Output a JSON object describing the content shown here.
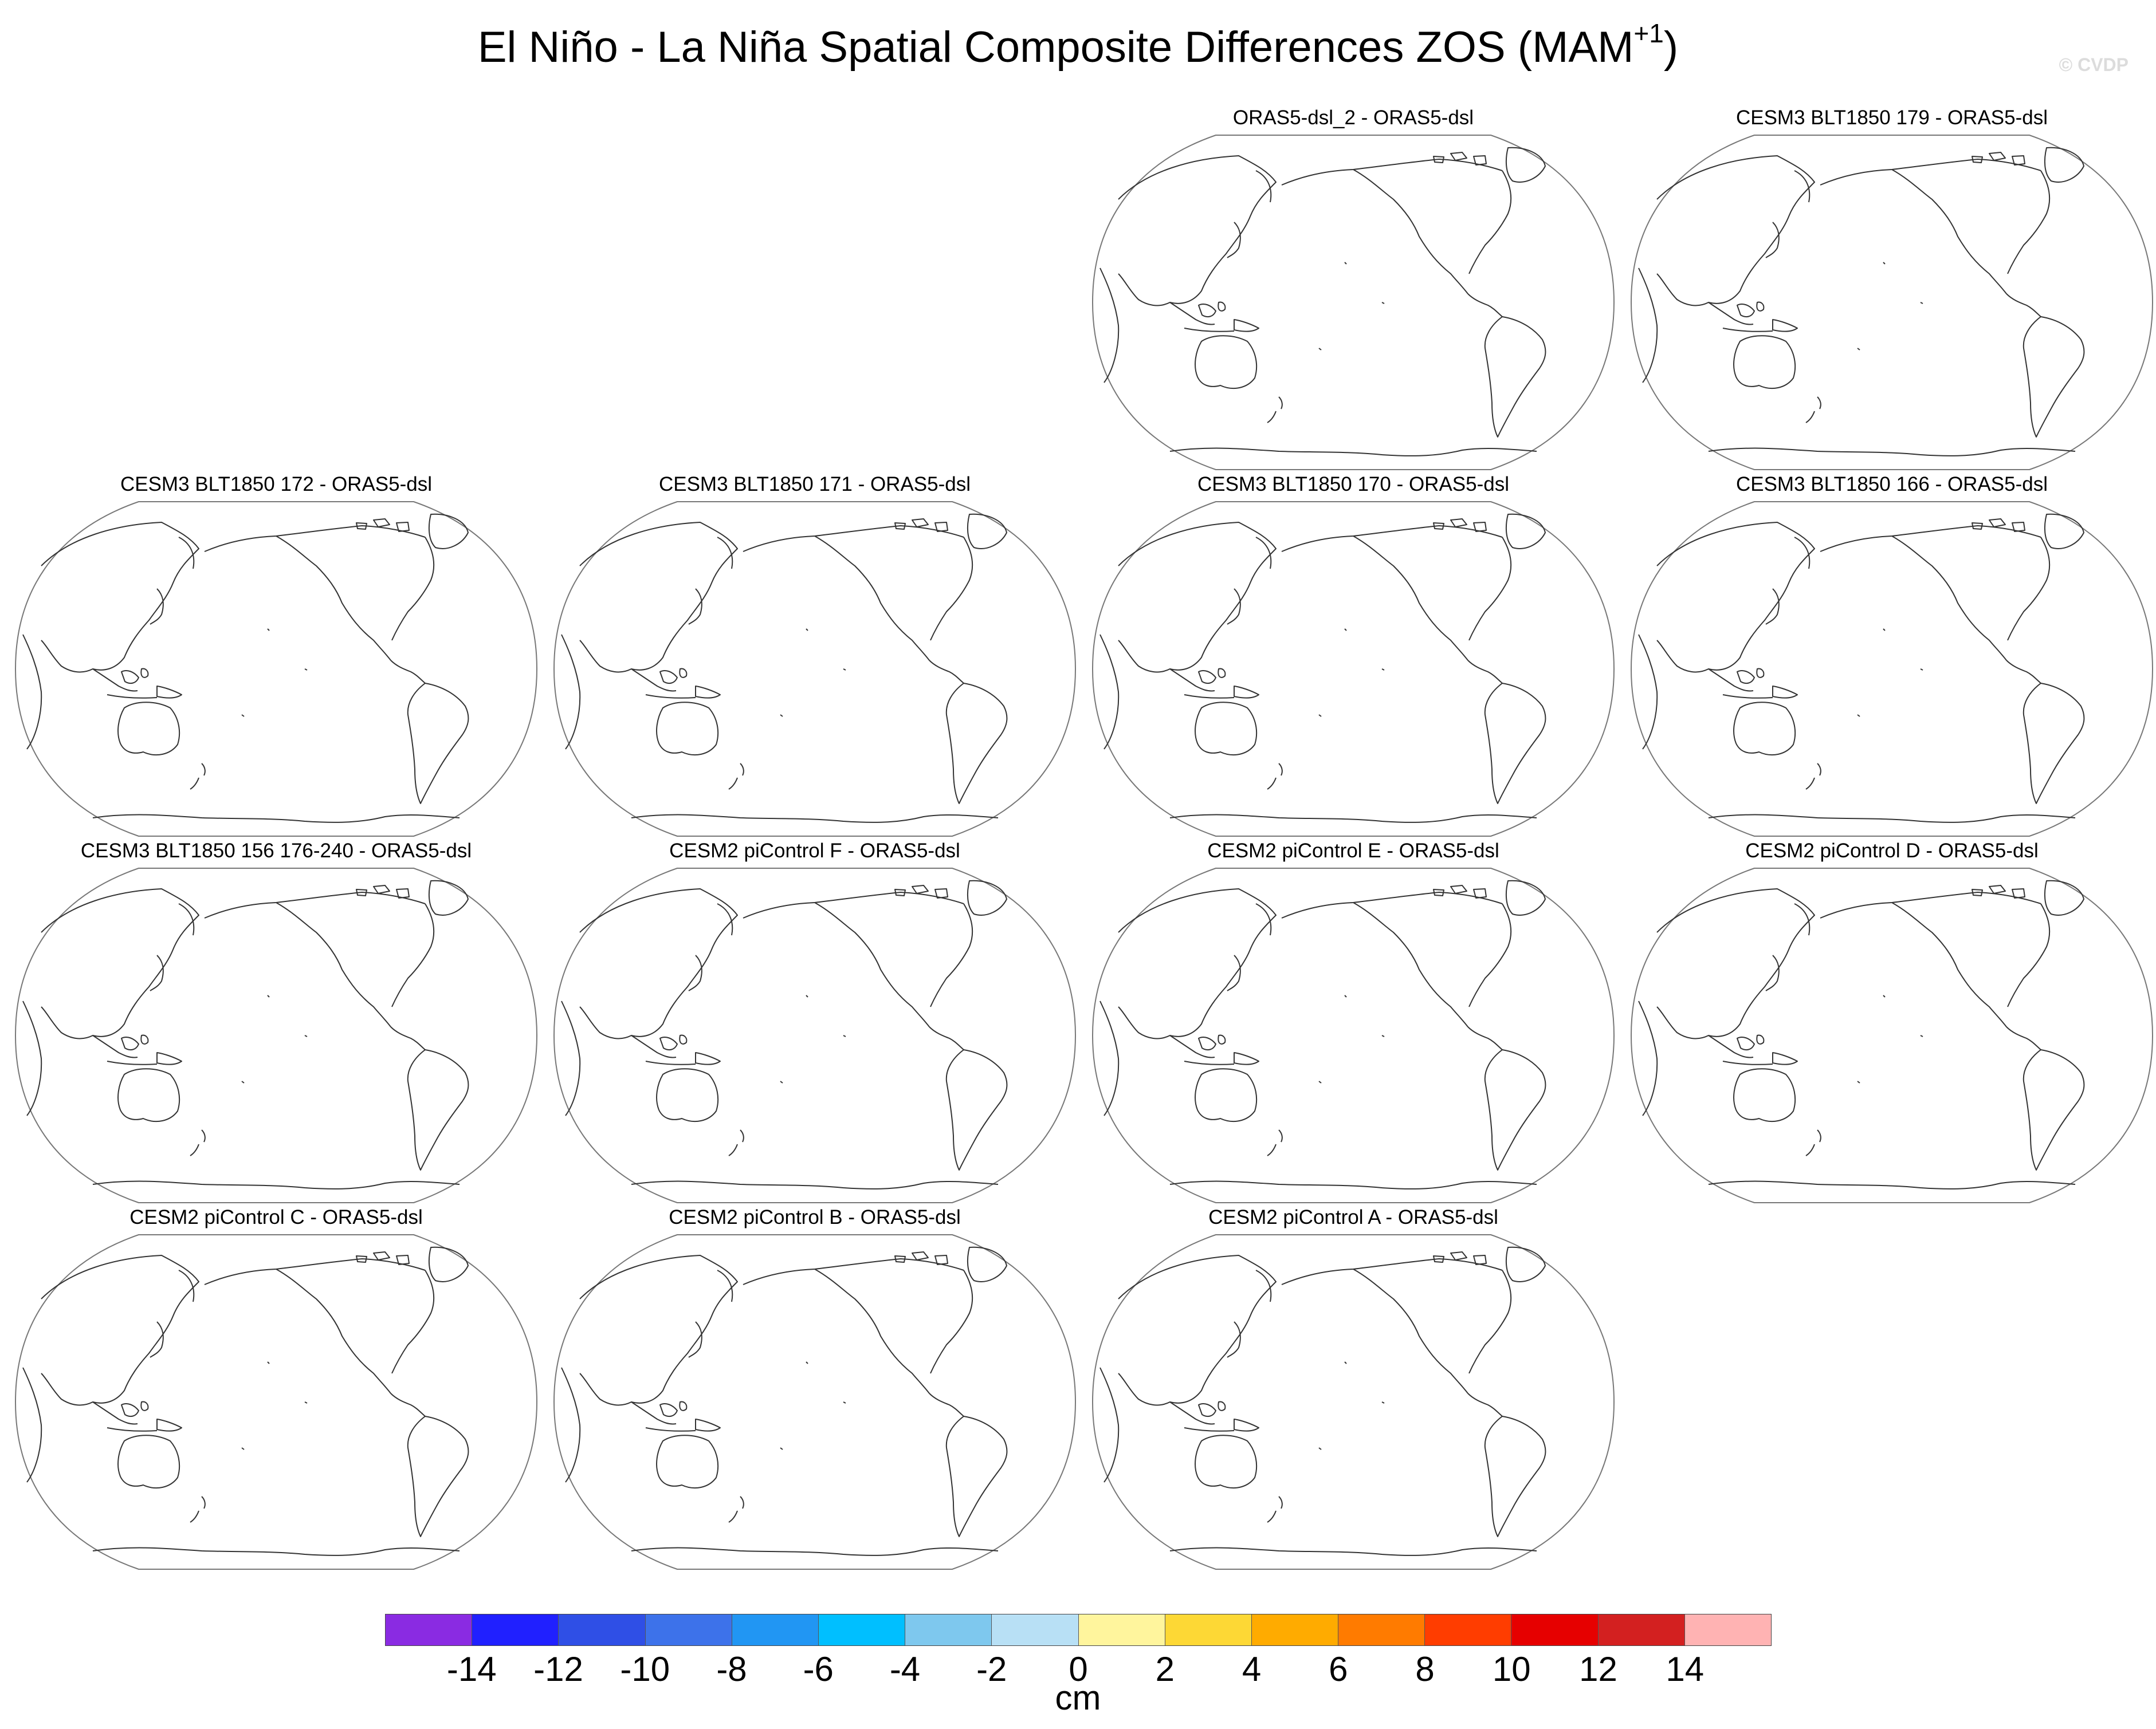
{
  "title": {
    "text": "El Niño - La Niña Spatial Composite Differences ZOS (MAM",
    "superscript": "+1",
    "suffix": ")"
  },
  "watermark": "© CVDP",
  "panels": [
    "ORAS5-dsl_2 - ORAS5-dsl",
    "CESM3 BLT1850 179 - ORAS5-dsl",
    "CESM3 BLT1850 172 - ORAS5-dsl",
    "CESM3 BLT1850 171 - ORAS5-dsl",
    "CESM3 BLT1850 170 - ORAS5-dsl",
    "CESM3 BLT1850 166 - ORAS5-dsl",
    "CESM3 BLT1850 156 176-240 - ORAS5-dsl",
    "CESM2 piControl F - ORAS5-dsl",
    "CESM2 piControl E - ORAS5-dsl",
    "CESM2 piControl D - ORAS5-dsl",
    "CESM2 piControl C - ORAS5-dsl",
    "CESM2 piControl B - ORAS5-dsl",
    "CESM2 piControl A - ORAS5-dsl"
  ],
  "colorbar": {
    "units": "cm",
    "labels": [
      "-14",
      "-12",
      "-10",
      "-8",
      "-6",
      "-4",
      "-2",
      "0",
      "2",
      "4",
      "6",
      "8",
      "10",
      "12",
      "14"
    ],
    "colors": [
      "#8a2be2",
      "#2020ff",
      "#2f4fe6",
      "#3d72ea",
      "#2196f3",
      "#00bfff",
      "#7ec8ee",
      "#b8e0f5",
      "#fff59d",
      "#fdd835",
      "#ffab00",
      "#ff7b00",
      "#ff3d00",
      "#e60000",
      "#d32020",
      "#ffb3b3"
    ]
  }
}
